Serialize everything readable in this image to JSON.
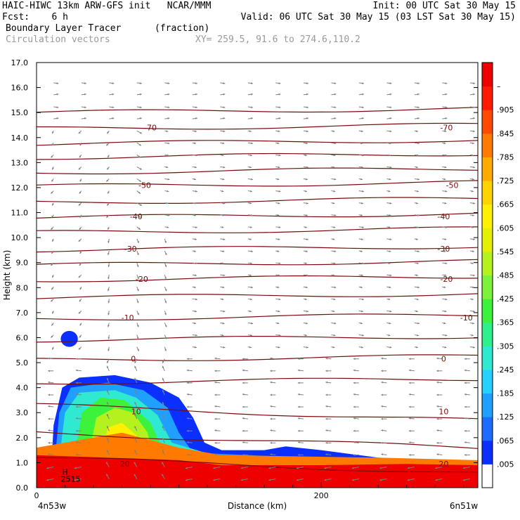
{
  "header": {
    "line1_left": "HAIC-HIWC 13km ARW-GFS init   NCAR/MMM",
    "line1_right": "Init: 00 UTC Sat 30 May 15",
    "line2_left": "Fcst:    6 h",
    "line2_right": "Valid: 06 UTC Sat 30 May 15 (03 LST Sat 30 May 15)",
    "line3_field": "Boundary Layer Tracer",
    "line3_units": "(fraction)",
    "line4_field": "Circulation vectors",
    "line4_xy": "XY= 259.5, 91.6 to 274.6,110.2"
  },
  "colors": {
    "contour": "#7a0a0a",
    "vector": "#808080",
    "frame": "#000000"
  },
  "chart_data": {
    "type": "heatmap",
    "xlabel": "Distance (km)",
    "ylabel": "Height (km)",
    "xlim": [
      0,
      310
    ],
    "ylim": [
      0,
      17.0
    ],
    "x_tick_labels": [
      "0",
      "200"
    ],
    "x_tick_values": [
      0,
      200
    ],
    "x_end_labels": {
      "left": "4n53w",
      "right": "6n51w"
    },
    "y_tick_labels": [
      "0.0",
      "1.0",
      "2.0",
      "3.0",
      "4.0",
      "5.0",
      "6.0",
      "7.0",
      "8.0",
      "9.0",
      "10.0",
      "11.0",
      "12.0",
      "13.0",
      "14.0",
      "15.0",
      "16.0",
      "17.0"
    ],
    "colorbar": {
      "labels": [
        ".005",
        ".065",
        ".125",
        ".185",
        ".245",
        ".305",
        ".365",
        ".425",
        ".485",
        ".545",
        ".605",
        ".665",
        ".725",
        ".785",
        ".845",
        ".905",
        "–"
      ],
      "colors": [
        "#ffffff",
        "#0a2fff",
        "#1e6bff",
        "#1fa0ff",
        "#26d0ff",
        "#2fe9d0",
        "#2ff08a",
        "#3cf23a",
        "#7df23a",
        "#b4f21e",
        "#e5f000",
        "#fff000",
        "#ffd200",
        "#ffaa00",
        "#ff7a00",
        "#ff4a00",
        "#ff1a00",
        "#ee0000"
      ]
    },
    "temperature_contours_C": [
      {
        "label": "20",
        "height_km": 0.9
      },
      {
        "label": "10",
        "height_km": 3.0
      },
      {
        "label": "0",
        "height_km": 5.1
      },
      {
        "label": "-10",
        "height_km": 6.75
      },
      {
        "label": "-20",
        "height_km": 8.3
      },
      {
        "label": "-30",
        "height_km": 9.5
      },
      {
        "label": "-40",
        "height_km": 10.8
      },
      {
        "label": "-50",
        "height_km": 12.05
      },
      {
        "label": "-70",
        "height_km": 14.35
      }
    ],
    "extra_contour_heights_km": [
      1.9,
      4.2,
      5.9,
      7.6,
      8.9,
      10.2,
      11.4,
      12.6,
      13.2,
      13.75,
      15.0
    ],
    "contour_label_positions": {
      "left_x_km": [
        62,
        70,
        68,
        64,
        74,
        66,
        70,
        76,
        80
      ],
      "right_x_km": [
        286,
        286,
        286,
        302,
        288,
        286,
        286,
        292,
        288
      ],
      "heights_km": [
        0.95,
        3.05,
        5.15,
        6.8,
        8.35,
        9.55,
        10.85,
        12.1,
        14.4
      ]
    },
    "tracer_regions": [
      {
        "name": "surface-layer",
        "level_index": 17,
        "polygon_km": [
          [
            0,
            0
          ],
          [
            310,
            0
          ],
          [
            310,
            0.9
          ],
          [
            260,
            0.95
          ],
          [
            200,
            0.9
          ],
          [
            130,
            0.9
          ],
          [
            100,
            1.1
          ],
          [
            0,
            1.3
          ]
        ]
      },
      {
        "name": "mid-band",
        "level_index": 14,
        "polygon_km": [
          [
            0,
            0.5
          ],
          [
            310,
            0.6
          ],
          [
            310,
            1.1
          ],
          [
            240,
            1.2
          ],
          [
            130,
            1.3
          ],
          [
            100,
            1.6
          ],
          [
            60,
            2.2
          ],
          [
            20,
            1.8
          ],
          [
            0,
            1.6
          ]
        ]
      }
    ],
    "plume": {
      "core_x_km": 55,
      "top_height_km": 4.4,
      "base_x_km": [
        10,
        110
      ],
      "levels": [
        {
          "color_index": 1,
          "outline_km": [
            [
              10,
              0.5
            ],
            [
              12,
              2.5
            ],
            [
              18,
              4.0
            ],
            [
              30,
              4.4
            ],
            [
              55,
              4.5
            ],
            [
              80,
              4.2
            ],
            [
              100,
              3.6
            ],
            [
              110,
              2.8
            ],
            [
              118,
              1.8
            ],
            [
              130,
              1.5
            ],
            [
              160,
              1.5
            ],
            [
              175,
              1.65
            ],
            [
              200,
              1.5
            ],
            [
              240,
              1.2
            ],
            [
              300,
              0.95
            ],
            [
              310,
              1.05
            ],
            [
              310,
              0.3
            ],
            [
              10,
              0.3
            ]
          ]
        },
        {
          "color_index": 3,
          "outline_km": [
            [
              12,
              0.6
            ],
            [
              16,
              3.0
            ],
            [
              24,
              4.0
            ],
            [
              50,
              4.2
            ],
            [
              75,
              3.9
            ],
            [
              92,
              3.2
            ],
            [
              100,
              2.2
            ],
            [
              110,
              1.4
            ],
            [
              150,
              1.3
            ],
            [
              250,
              1.0
            ],
            [
              310,
              0.9
            ],
            [
              310,
              0.3
            ],
            [
              12,
              0.3
            ]
          ]
        },
        {
          "color_index": 5,
          "outline_km": [
            [
              15,
              0.7
            ],
            [
              20,
              3.0
            ],
            [
              30,
              3.8
            ],
            [
              55,
              3.9
            ],
            [
              70,
              3.6
            ],
            [
              85,
              2.9
            ],
            [
              95,
              1.8
            ],
            [
              130,
              1.2
            ],
            [
              310,
              0.8
            ],
            [
              310,
              0.3
            ],
            [
              15,
              0.3
            ]
          ]
        },
        {
          "color_index": 7,
          "outline_km": [
            [
              25,
              0.8
            ],
            [
              32,
              3.0
            ],
            [
              45,
              3.6
            ],
            [
              62,
              3.5
            ],
            [
              80,
              2.6
            ],
            [
              88,
              1.6
            ],
            [
              120,
              1.1
            ],
            [
              310,
              0.75
            ],
            [
              310,
              0.3
            ],
            [
              25,
              0.3
            ]
          ]
        },
        {
          "color_index": 9,
          "outline_km": [
            [
              35,
              0.9
            ],
            [
              42,
              2.8
            ],
            [
              55,
              3.2
            ],
            [
              68,
              3.0
            ],
            [
              78,
              2.2
            ],
            [
              82,
              1.3
            ],
            [
              310,
              0.7
            ],
            [
              310,
              0.3
            ],
            [
              35,
              0.3
            ]
          ]
        },
        {
          "color_index": 11,
          "outline_km": [
            [
              45,
              1.0
            ],
            [
              50,
              2.4
            ],
            [
              60,
              2.6
            ],
            [
              70,
              2.1
            ],
            [
              74,
              1.2
            ],
            [
              310,
              0.62
            ],
            [
              310,
              0.3
            ],
            [
              45,
              0.3
            ]
          ]
        }
      ]
    },
    "secondary_blob": {
      "center_km": [
        23,
        5.95
      ],
      "rx_km": 6,
      "ry_km": 0.32,
      "color_index": 1
    },
    "marker_h": {
      "label": "H",
      "sublabel": "2515",
      "position_km": [
        20,
        0.35
      ]
    }
  }
}
